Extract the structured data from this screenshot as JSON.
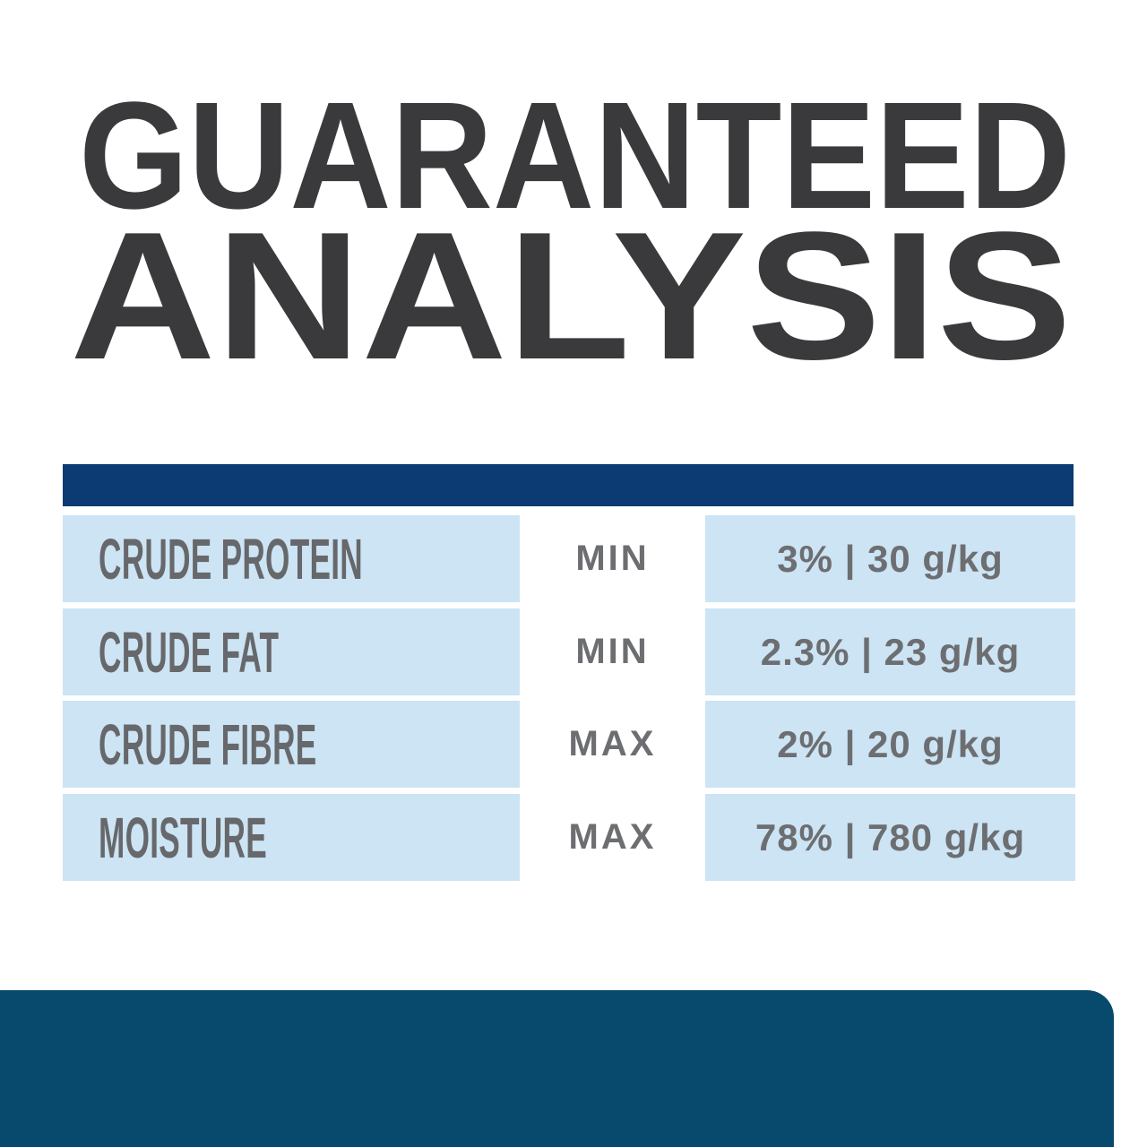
{
  "title": {
    "line1": "GUARANTEED",
    "line2": "ANALYSIS"
  },
  "table": {
    "rows": [
      {
        "nutrient": "CRUDE PROTEIN",
        "qualifier": "MIN",
        "value": "3% | 30 g/kg"
      },
      {
        "nutrient": "CRUDE FAT",
        "qualifier": "MIN",
        "value": "2.3% | 23 g/kg"
      },
      {
        "nutrient": "CRUDE FIBRE",
        "qualifier": "MAX",
        "value": "2% | 20 g/kg"
      },
      {
        "nutrient": "MOISTURE",
        "qualifier": "MAX",
        "value": "78% | 780 g/kg"
      }
    ]
  },
  "colors": {
    "title_text": "#3a3a3c",
    "header_bar_navy": "#0c3a72",
    "row_light_blue": "#cce4f4",
    "body_text_gray": "#6d6e71",
    "footer_teal": "#074a6d",
    "background": "#ffffff"
  }
}
